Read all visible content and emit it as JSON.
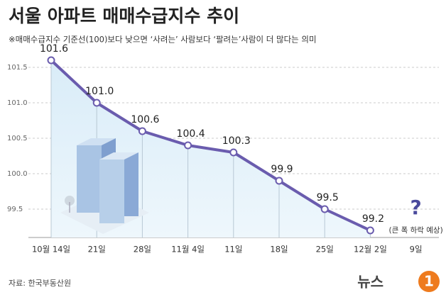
{
  "title": "서울 아파트 매매수급지수 추이",
  "subtitle": "※매매수급지수 기준선(100)보다 낮으면 ‘사려는’ 사람보다 ‘팔려는’사람이 더 많다는 의미",
  "source": "자료: 한국부동산원",
  "logo": {
    "text": "뉴스",
    "number": "1"
  },
  "chart_data": {
    "type": "line",
    "categories": [
      "10월 14일",
      "21일",
      "28일",
      "11월 4일",
      "11일",
      "18일",
      "25일",
      "12월 2일",
      "9일"
    ],
    "values": [
      101.6,
      101.0,
      100.6,
      100.4,
      100.3,
      99.9,
      99.5,
      99.2,
      null
    ],
    "value_labels": [
      "101.6",
      "101.0",
      "100.6",
      "100.4",
      "100.3",
      "99.9",
      "99.5",
      "99.2",
      null
    ],
    "color": "#6a5cae",
    "ylim": [
      99.1,
      101.8
    ],
    "yticks": [
      99.5,
      {
        "value": 100,
        "label": "100.0"
      },
      100.5,
      {
        "value": 101,
        "label": "101.0"
      },
      101.5
    ],
    "annotations": [
      "?",
      "(큰 폭 하락 예상)"
    ]
  }
}
